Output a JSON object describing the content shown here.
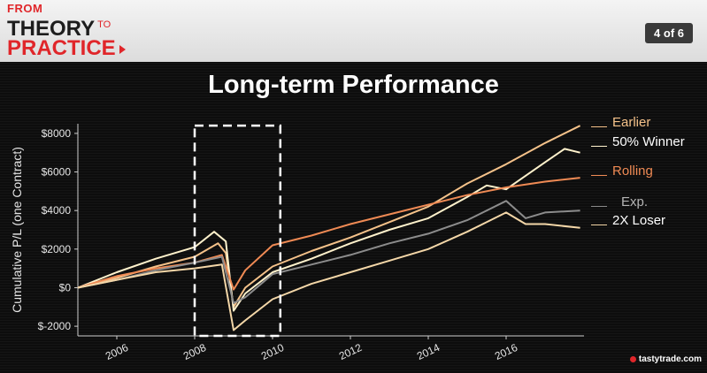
{
  "header": {
    "brand_from": "FROM",
    "brand_theory": "THEORY",
    "brand_to": "TO",
    "brand_practice": "PRACTICE",
    "page_indicator": "4 of 6"
  },
  "logo_text": "tastytrade.com",
  "chart_data": {
    "type": "line",
    "title": "Long-term Performance",
    "xlabel": "",
    "ylabel": "Cumulative P/L (one Contract)",
    "xlim": [
      2005.0,
      2018.0
    ],
    "ylim": [
      -2500,
      8500
    ],
    "x_ticks": [
      2006,
      2008,
      2010,
      2012,
      2014,
      2016
    ],
    "y_ticks": [
      -2000,
      0,
      2000,
      4000,
      6000,
      8000
    ],
    "y_tick_labels": [
      "$-2000",
      "$0",
      "$2000",
      "$4000",
      "$6000",
      "$8000"
    ],
    "grid": false,
    "legend_position": "right",
    "highlight_box": {
      "x_range": [
        2008.0,
        2010.2
      ],
      "y_range": [
        -2500,
        8400
      ],
      "style": "dashed white"
    },
    "series": [
      {
        "name": "Earlier",
        "color": "#f5c28a",
        "points": [
          [
            2005.0,
            0
          ],
          [
            2006.0,
            500
          ],
          [
            2007.0,
            1100
          ],
          [
            2008.0,
            1600
          ],
          [
            2008.6,
            2300
          ],
          [
            2008.8,
            1800
          ],
          [
            2009.0,
            -1000
          ],
          [
            2009.3,
            0
          ],
          [
            2010.0,
            1100
          ],
          [
            2011.0,
            1900
          ],
          [
            2012.0,
            2600
          ],
          [
            2013.0,
            3400
          ],
          [
            2014.0,
            4200
          ],
          [
            2015.0,
            5400
          ],
          [
            2016.0,
            6400
          ],
          [
            2017.0,
            7500
          ],
          [
            2017.9,
            8400
          ]
        ]
      },
      {
        "name": "50% Winner",
        "color": "#fff2cc",
        "points": [
          [
            2005.0,
            0
          ],
          [
            2006.0,
            800
          ],
          [
            2007.0,
            1500
          ],
          [
            2008.0,
            2100
          ],
          [
            2008.5,
            2900
          ],
          [
            2008.8,
            2400
          ],
          [
            2009.0,
            -1200
          ],
          [
            2009.3,
            -300
          ],
          [
            2010.0,
            800
          ],
          [
            2011.0,
            1500
          ],
          [
            2012.0,
            2300
          ],
          [
            2013.0,
            3000
          ],
          [
            2014.0,
            3600
          ],
          [
            2015.0,
            4700
          ],
          [
            2015.5,
            5300
          ],
          [
            2016.0,
            5100
          ],
          [
            2017.0,
            6500
          ],
          [
            2017.5,
            7200
          ],
          [
            2017.9,
            7000
          ]
        ]
      },
      {
        "name": "Rolling",
        "color": "#ef8a54",
        "points": [
          [
            2005.0,
            0
          ],
          [
            2006.0,
            600
          ],
          [
            2007.0,
            1000
          ],
          [
            2008.0,
            1300
          ],
          [
            2008.7,
            1700
          ],
          [
            2009.0,
            -100
          ],
          [
            2009.3,
            900
          ],
          [
            2010.0,
            2200
          ],
          [
            2011.0,
            2700
          ],
          [
            2012.0,
            3300
          ],
          [
            2013.0,
            3800
          ],
          [
            2014.0,
            4300
          ],
          [
            2015.0,
            4800
          ],
          [
            2016.0,
            5200
          ],
          [
            2017.0,
            5500
          ],
          [
            2017.9,
            5700
          ]
        ]
      },
      {
        "name": "Exp.",
        "color": "#8c8c8c",
        "points": [
          [
            2005.0,
            0
          ],
          [
            2006.0,
            400
          ],
          [
            2007.0,
            900
          ],
          [
            2008.0,
            1300
          ],
          [
            2008.7,
            1600
          ],
          [
            2009.0,
            -800
          ],
          [
            2009.3,
            -500
          ],
          [
            2010.0,
            700
          ],
          [
            2011.0,
            1200
          ],
          [
            2012.0,
            1700
          ],
          [
            2013.0,
            2300
          ],
          [
            2014.0,
            2800
          ],
          [
            2015.0,
            3500
          ],
          [
            2016.0,
            4500
          ],
          [
            2016.5,
            3600
          ],
          [
            2017.0,
            3900
          ],
          [
            2017.9,
            4000
          ]
        ]
      },
      {
        "name": "2X Loser",
        "color": "#f4d7a8",
        "points": [
          [
            2005.0,
            0
          ],
          [
            2006.0,
            400
          ],
          [
            2007.0,
            800
          ],
          [
            2008.0,
            1000
          ],
          [
            2008.7,
            1200
          ],
          [
            2009.0,
            -2200
          ],
          [
            2009.3,
            -1700
          ],
          [
            2010.0,
            -600
          ],
          [
            2011.0,
            200
          ],
          [
            2012.0,
            800
          ],
          [
            2013.0,
            1400
          ],
          [
            2014.0,
            2000
          ],
          [
            2015.0,
            2900
          ],
          [
            2016.0,
            3900
          ],
          [
            2016.5,
            3300
          ],
          [
            2017.0,
            3300
          ],
          [
            2017.9,
            3100
          ]
        ]
      }
    ]
  }
}
